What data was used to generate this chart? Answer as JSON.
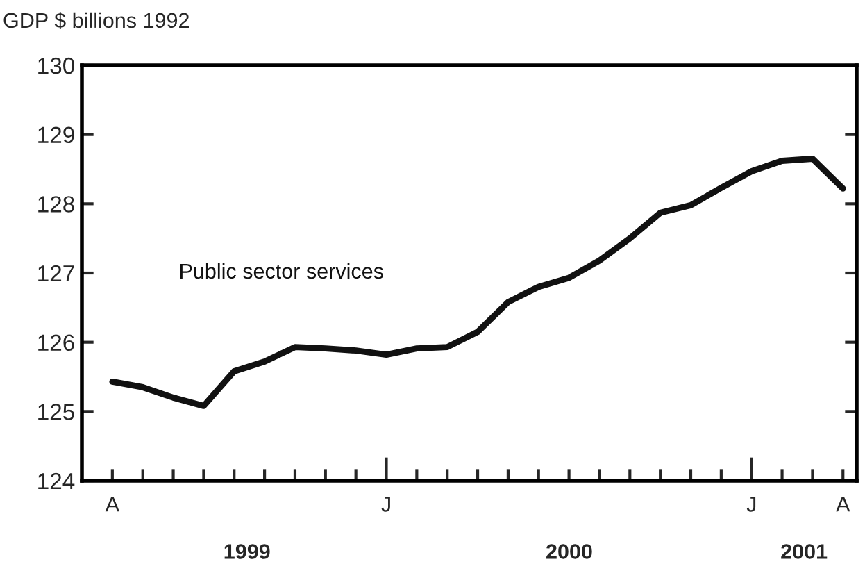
{
  "chart_data": {
    "type": "line",
    "ylabel": "GDP $ billions 1992",
    "categories": [
      "A",
      null,
      null,
      null,
      null,
      null,
      null,
      null,
      null,
      "J",
      null,
      null,
      null,
      null,
      null,
      null,
      null,
      null,
      null,
      null,
      null,
      "J",
      null,
      null,
      "A"
    ],
    "series": [
      {
        "name": "Public sector services",
        "color": "#111111",
        "values": [
          125.43,
          125.35,
          125.2,
          125.08,
          125.58,
          125.72,
          125.93,
          125.91,
          125.88,
          125.82,
          125.91,
          125.93,
          126.15,
          126.58,
          126.8,
          126.93,
          127.18,
          127.5,
          127.87,
          127.98,
          128.23,
          128.47,
          128.62,
          128.65,
          128.22
        ]
      }
    ],
    "annotations": [
      "1999",
      "2000",
      "2001"
    ],
    "ylim": [
      124,
      130
    ],
    "yticks": [
      124,
      125,
      126,
      127,
      128,
      129,
      130
    ],
    "grid": false,
    "legend": false,
    "marker": "none",
    "line_style": "solid"
  }
}
